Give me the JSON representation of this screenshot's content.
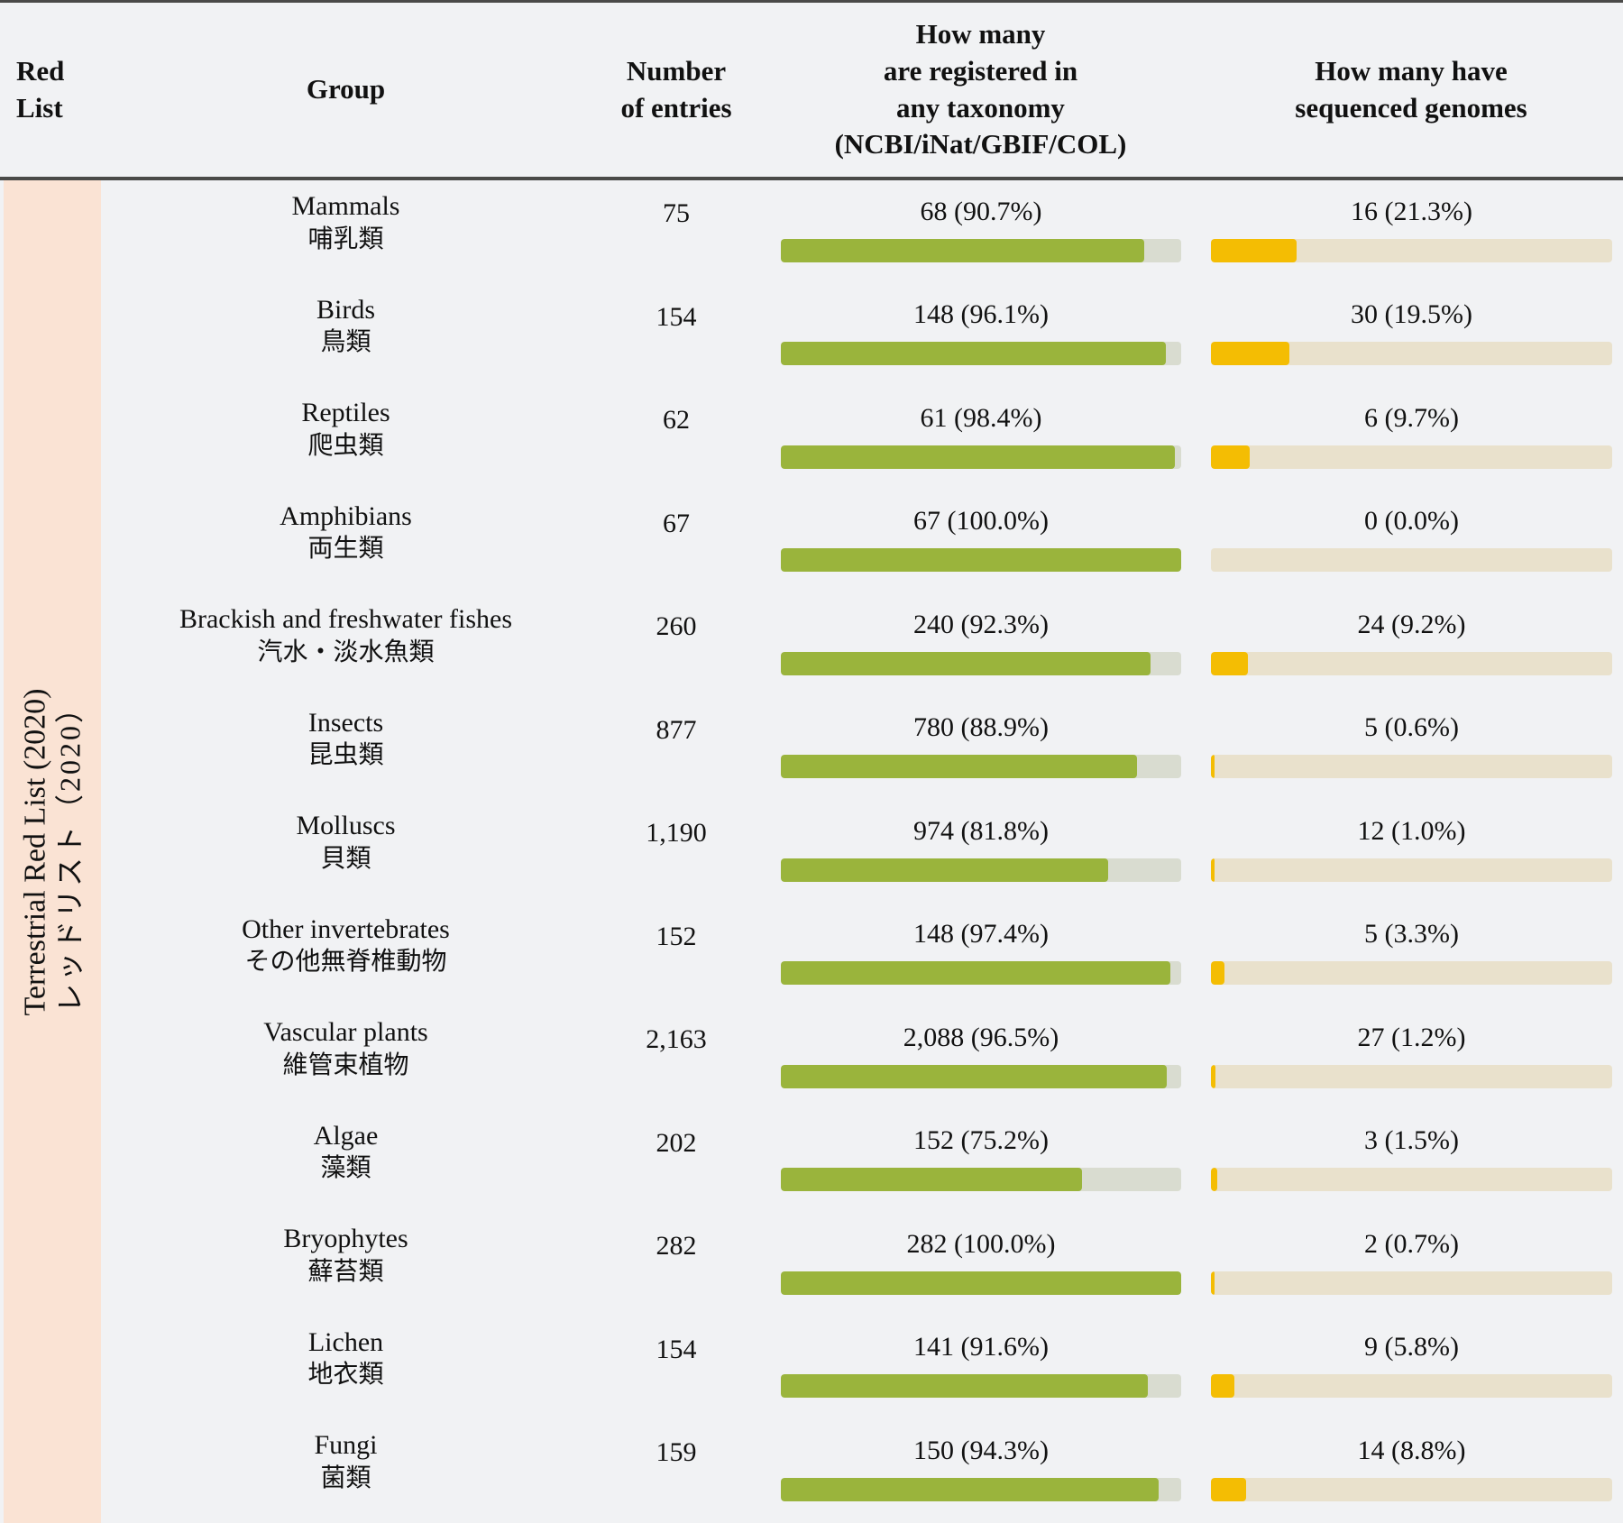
{
  "header": {
    "red_list": "Red\nList",
    "group": "Group",
    "entries": "Number\nof entries",
    "taxonomy": "How many\nare registered in\nany taxonomy\n(NCBI/iNat/GBIF/COL)",
    "genomes": "How many have\nsequenced genomes"
  },
  "red_list": {
    "en": "Terrestrial Red List (2020)",
    "ja": "レッドリスト（2020）"
  },
  "rows": [
    {
      "group_en": "Mammals",
      "group_ja": "哺乳類",
      "entries": "75",
      "taxonomy": {
        "label": "68 (90.7%)",
        "pct": 90.7
      },
      "genomes": {
        "label": "16 (21.3%)",
        "pct": 21.3
      }
    },
    {
      "group_en": "Birds",
      "group_ja": "鳥類",
      "entries": "154",
      "taxonomy": {
        "label": "148 (96.1%)",
        "pct": 96.1
      },
      "genomes": {
        "label": "30 (19.5%)",
        "pct": 19.5
      }
    },
    {
      "group_en": "Reptiles",
      "group_ja": "爬虫類",
      "entries": "62",
      "taxonomy": {
        "label": "61 (98.4%)",
        "pct": 98.4
      },
      "genomes": {
        "label": "6 (9.7%)",
        "pct": 9.7
      }
    },
    {
      "group_en": "Amphibians",
      "group_ja": "両生類",
      "entries": "67",
      "taxonomy": {
        "label": "67 (100.0%)",
        "pct": 100.0
      },
      "genomes": {
        "label": "0 (0.0%)",
        "pct": 0.0
      }
    },
    {
      "group_en": "Brackish and freshwater fishes",
      "group_ja": "汽水・淡水魚類",
      "entries": "260",
      "taxonomy": {
        "label": "240 (92.3%)",
        "pct": 92.3
      },
      "genomes": {
        "label": "24 (9.2%)",
        "pct": 9.2
      }
    },
    {
      "group_en": "Insects",
      "group_ja": "昆虫類",
      "entries": "877",
      "taxonomy": {
        "label": "780 (88.9%)",
        "pct": 88.9
      },
      "genomes": {
        "label": "5 (0.6%)",
        "pct": 0.6
      }
    },
    {
      "group_en": "Molluscs",
      "group_ja": "貝類",
      "entries": "1,190",
      "taxonomy": {
        "label": "974 (81.8%)",
        "pct": 81.8
      },
      "genomes": {
        "label": "12 (1.0%)",
        "pct": 1.0
      }
    },
    {
      "group_en": "Other invertebrates",
      "group_ja": "その他無脊椎動物",
      "entries": "152",
      "taxonomy": {
        "label": "148 (97.4%)",
        "pct": 97.4
      },
      "genomes": {
        "label": "5 (3.3%)",
        "pct": 3.3
      }
    },
    {
      "group_en": "Vascular plants",
      "group_ja": "維管束植物",
      "entries": "2,163",
      "taxonomy": {
        "label": "2,088 (96.5%)",
        "pct": 96.5
      },
      "genomes": {
        "label": "27 (1.2%)",
        "pct": 1.2
      }
    },
    {
      "group_en": "Algae",
      "group_ja": "藻類",
      "entries": "202",
      "taxonomy": {
        "label": "152 (75.2%)",
        "pct": 75.2
      },
      "genomes": {
        "label": "3 (1.5%)",
        "pct": 1.5
      }
    },
    {
      "group_en": "Bryophytes",
      "group_ja": "蘚苔類",
      "entries": "282",
      "taxonomy": {
        "label": "282 (100.0%)",
        "pct": 100.0
      },
      "genomes": {
        "label": "2 (0.7%)",
        "pct": 0.7
      }
    },
    {
      "group_en": "Lichen",
      "group_ja": "地衣類",
      "entries": "154",
      "taxonomy": {
        "label": "141 (91.6%)",
        "pct": 91.6
      },
      "genomes": {
        "label": "9 (5.8%)",
        "pct": 5.8
      }
    },
    {
      "group_en": "Fungi",
      "group_ja": "菌類",
      "entries": "159",
      "taxonomy": {
        "label": "150 (94.3%)",
        "pct": 94.3
      },
      "genomes": {
        "label": "14 (8.8%)",
        "pct": 8.8
      }
    }
  ],
  "colors": {
    "page_bg": "#f1f2f4",
    "red_list_bg": "#fae3d4",
    "taxonomy_fill": "#9ab43c",
    "taxonomy_track": "#d9dcd0",
    "genome_fill": "#f4bd03",
    "genome_track": "#e9e1cc",
    "border": "#4a4a48",
    "text": "#111111"
  },
  "chart_data": {
    "type": "table",
    "title": "",
    "row_group_label": "Terrestrial Red List (2020) / レッドリスト（2020）",
    "columns": [
      "Red List",
      "Group",
      "Number of entries",
      "How many are registered in any taxonomy (NCBI/iNat/GBIF/COL)",
      "How many have sequenced genomes"
    ],
    "categories": [
      "Mammals",
      "Birds",
      "Reptiles",
      "Amphibians",
      "Brackish and freshwater fishes",
      "Insects",
      "Molluscs",
      "Other invertebrates",
      "Vascular plants",
      "Algae",
      "Bryophytes",
      "Lichen",
      "Fungi"
    ],
    "categories_ja": [
      "哺乳類",
      "鳥類",
      "爬虫類",
      "両生類",
      "汽水・淡水魚類",
      "昆虫類",
      "貝類",
      "その他無脊椎動物",
      "維管束植物",
      "藻類",
      "蘚苔類",
      "地衣類",
      "菌類"
    ],
    "series": [
      {
        "name": "Number of entries",
        "values": [
          75,
          154,
          62,
          67,
          260,
          877,
          1190,
          152,
          2163,
          202,
          282,
          154,
          159
        ]
      },
      {
        "name": "Registered in any taxonomy (count)",
        "values": [
          68,
          148,
          61,
          67,
          240,
          780,
          974,
          148,
          2088,
          152,
          282,
          141,
          150
        ]
      },
      {
        "name": "Registered in any taxonomy (%)",
        "values": [
          90.7,
          96.1,
          98.4,
          100.0,
          92.3,
          88.9,
          81.8,
          97.4,
          96.5,
          75.2,
          100.0,
          91.6,
          94.3
        ]
      },
      {
        "name": "Sequenced genomes (count)",
        "values": [
          16,
          30,
          6,
          0,
          24,
          5,
          12,
          5,
          27,
          3,
          2,
          9,
          14
        ]
      },
      {
        "name": "Sequenced genomes (%)",
        "values": [
          21.3,
          19.5,
          9.7,
          0.0,
          9.2,
          0.6,
          1.0,
          3.3,
          1.2,
          1.5,
          0.7,
          5.8,
          8.8
        ]
      }
    ],
    "bar_style": {
      "taxonomy_bar_color": "#9ab43c",
      "genome_bar_color": "#f4bd03",
      "bars_show_percent_of_entries": true
    }
  }
}
